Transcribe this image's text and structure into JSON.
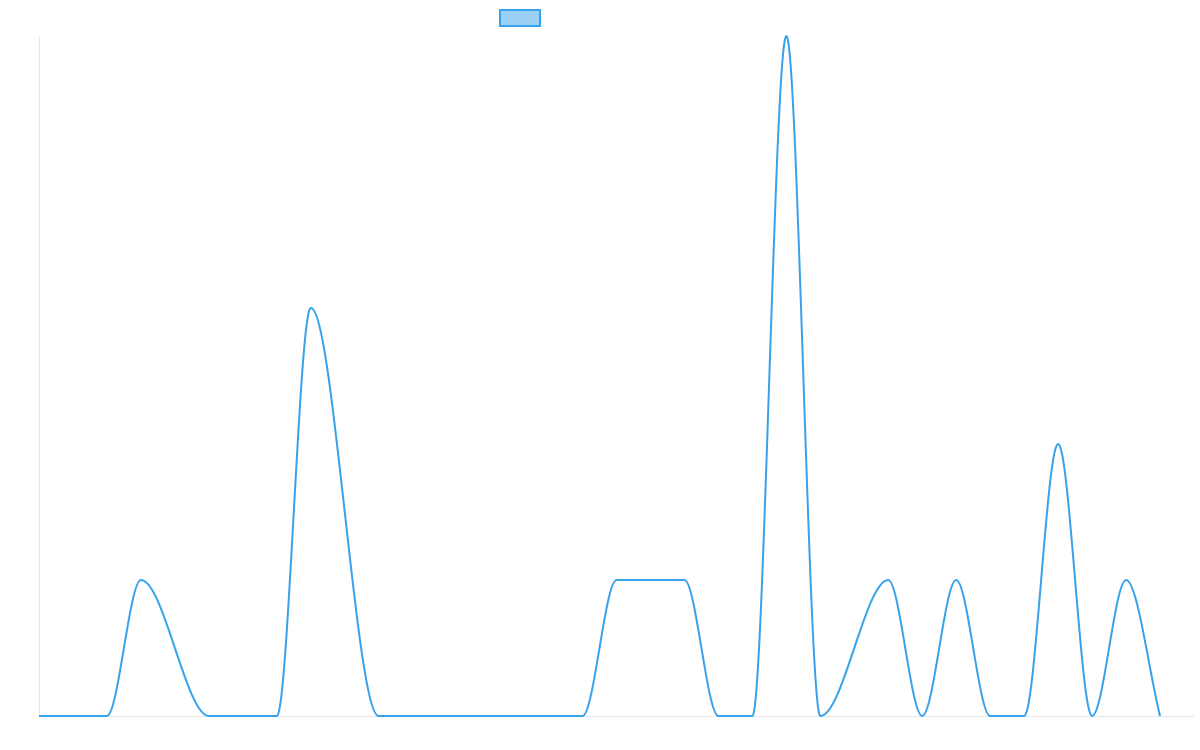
{
  "chart_data": {
    "type": "line",
    "title": "",
    "xlabel": "",
    "ylabel": "",
    "grid": false,
    "legend_placement": "top-center",
    "x": [
      0,
      2,
      3,
      5,
      7,
      8,
      10,
      11,
      13,
      14,
      16,
      17,
      19,
      20,
      21,
      22,
      23,
      25,
      26,
      27,
      28,
      29,
      30,
      31,
      32,
      33
    ],
    "series": [
      {
        "color": "#36a2eb",
        "fill_color": "#9ad0f5",
        "values": [
          0,
          0,
          1,
          0,
          0,
          3,
          0,
          0,
          0,
          0,
          0,
          1,
          1,
          0,
          0,
          5,
          0,
          1,
          0,
          1,
          0,
          0,
          2,
          0,
          1,
          0
        ]
      }
    ],
    "ylim": [
      0,
      5
    ],
    "xlim": [
      0,
      34
    ],
    "tension": 0.4
  }
}
